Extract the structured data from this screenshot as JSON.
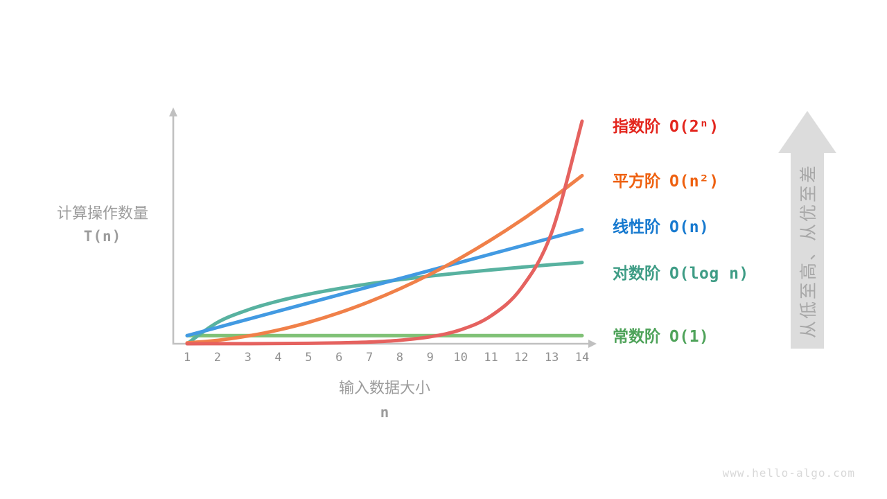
{
  "background": "#ffffff",
  "watermark": "www.hello-algo.com",
  "axis_color": "#c0c0c0",
  "tick_color": "#909090",
  "label_color": "#9c9c9c",
  "y_axis": {
    "label": "计算操作数量",
    "formula": "T(n)"
  },
  "x_axis": {
    "label": "输入数据大小",
    "formula": "n"
  },
  "side_arrow": {
    "text": "从低至高、从优至差",
    "fill": "#dcdcdc",
    "text_color": "#a8a8a8"
  },
  "legend": [
    {
      "key": "exponential",
      "name": "指数阶",
      "notation": "O(2ⁿ)",
      "color": "#e3261e"
    },
    {
      "key": "quadratic",
      "name": "平方阶",
      "notation": "O(n²)",
      "color": "#ee600f"
    },
    {
      "key": "linear",
      "name": "线性阶",
      "notation": "O(n)",
      "color": "#1679cf"
    },
    {
      "key": "logarithmic",
      "name": "对数阶",
      "notation": "O(log n)",
      "color": "#3e9c85"
    },
    {
      "key": "constant",
      "name": "常数阶",
      "notation": "O(1)",
      "color": "#4fa35a"
    }
  ],
  "chart_data": {
    "type": "line",
    "title": "",
    "xlabel": "输入数据大小 n",
    "ylabel": "计算操作数量 T(n)",
    "x": [
      1,
      2,
      3,
      4,
      5,
      6,
      7,
      8,
      9,
      10,
      11,
      12,
      13,
      14
    ],
    "xlim": [
      1,
      14
    ],
    "ylim_units": [
      0,
      28.5
    ],
    "grid": false,
    "legend_position": "right",
    "series": [
      {
        "key": "constant",
        "name": "常数阶 O(1)",
        "color": "#80c176",
        "values": [
          1,
          1,
          1,
          1,
          1,
          1,
          1,
          1,
          1,
          1,
          1,
          1,
          1,
          1
        ]
      },
      {
        "key": "logarithmic",
        "name": "对数阶 O(log n)",
        "color": "#58b2a0",
        "values": [
          0,
          2.62,
          4.15,
          5.24,
          6.08,
          6.77,
          7.36,
          7.86,
          8.31,
          8.7,
          9.06,
          9.39,
          9.7,
          9.97
        ]
      },
      {
        "key": "linear",
        "name": "线性阶 O(n)",
        "color": "#429ae2",
        "values": [
          1,
          2,
          3,
          4,
          5,
          6,
          7,
          8,
          9,
          10,
          11,
          12,
          13,
          14
        ]
      },
      {
        "key": "quadratic",
        "name": "平方阶 O(n²)",
        "color": "#f08049",
        "values": [
          0.11,
          0.42,
          0.95,
          1.68,
          2.63,
          3.79,
          5.16,
          6.74,
          8.53,
          10.53,
          12.74,
          15.16,
          17.79,
          20.63
        ]
      },
      {
        "key": "exponential",
        "name": "指数阶 O(2ⁿ)",
        "color": "#e5625f",
        "values": [
          0.003,
          0.007,
          0.013,
          0.027,
          0.053,
          0.107,
          0.213,
          0.427,
          0.853,
          1.707,
          3.413,
          6.827,
          13.653,
          27.307
        ]
      }
    ]
  }
}
